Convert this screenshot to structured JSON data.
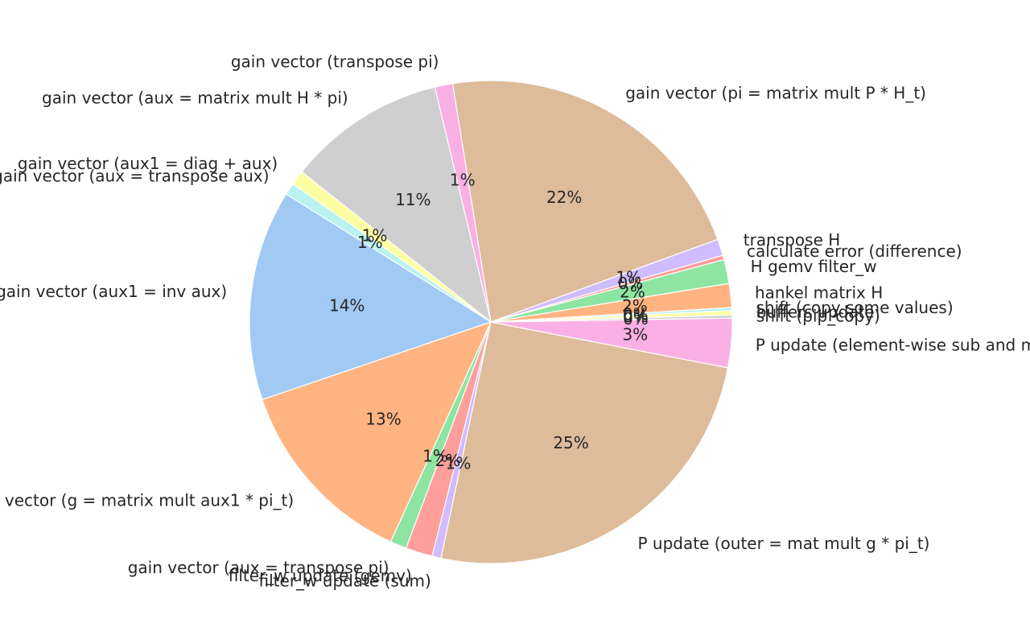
{
  "chart_data": {
    "type": "pie",
    "title": "",
    "slices": [
      {
        "label": "gain vector (pi = matrix mult P * H_t)",
        "value": 22.0,
        "pct": "22%",
        "color": "#debb9b"
      },
      {
        "label": "gain vector (transpose pi)",
        "value": 1.2,
        "pct": "1%",
        "color": "#fab0e4"
      },
      {
        "label": "gain vector (aux = matrix mult H * pi)",
        "value": 10.6,
        "pct": "11%",
        "color": "#cfcfcf"
      },
      {
        "label": "gain vector (aux1 = diag + aux)",
        "value": 1.0,
        "pct": "1%",
        "color": "#fffea3"
      },
      {
        "label": "gain vector (aux = transpose aux)",
        "value": 0.8,
        "pct": "1%",
        "color": "#b9f2f0"
      },
      {
        "label": "gain vector (aux1 = inv aux)",
        "value": 14.1,
        "pct": "14%",
        "color": "#a1c9f4"
      },
      {
        "label": "gain vector (g = matrix mult aux1 * pi_t)",
        "value": 13.0,
        "pct": "13%",
        "color": "#ffb482"
      },
      {
        "label": "gain vector (aux = transpose pi)",
        "value": 1.1,
        "pct": "1%",
        "color": "#8de5a1"
      },
      {
        "label": "filter_w update (gemv)",
        "value": 1.8,
        "pct": "2%",
        "color": "#ff9f9b"
      },
      {
        "label": "filter_w update (sum)",
        "value": 0.6,
        "pct": "1%",
        "color": "#d0bbff"
      },
      {
        "label": "P update (outer = mat mult g * pi_t)",
        "value": 25.3,
        "pct": "25%",
        "color": "#debb9b"
      },
      {
        "label": "P update (element-wise sub and m",
        "value": 3.3,
        "pct": "3%",
        "color": "#fab0e4"
      },
      {
        "label": "shift (pip_copy)",
        "value": 0.2,
        "pct": "0%",
        "color": "#cfcfcf"
      },
      {
        "label": "buffers update",
        "value": 0.3,
        "pct": "0%",
        "color": "#fffea3"
      },
      {
        "label": "shift (copy some values)",
        "value": 0.2,
        "pct": "0%",
        "color": "#b9f2f0"
      },
      {
        "label": "hankel matrix H",
        "value": 1.6,
        "pct": "2%",
        "color": "#ffb482"
      },
      {
        "label": "H gemv filter_w",
        "value": 1.6,
        "pct": "2%",
        "color": "#8de5a1"
      },
      {
        "label": "calculate error (difference)",
        "value": 0.3,
        "pct": "0%",
        "color": "#ff9f9b"
      },
      {
        "label": "transpose H",
        "value": 1.1,
        "pct": "1%",
        "color": "#d0bbff"
      }
    ]
  }
}
